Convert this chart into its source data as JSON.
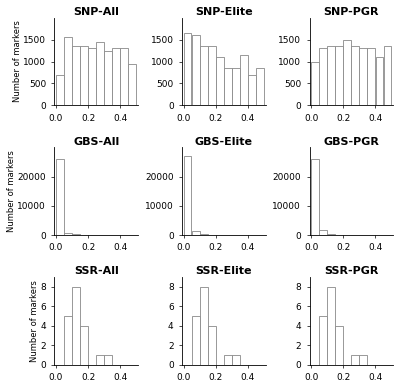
{
  "titles": [
    [
      "SNP-All",
      "SNP-Elite",
      "SNP-PGR"
    ],
    [
      "GBS-All",
      "GBS-Elite",
      "GBS-PGR"
    ],
    [
      "SSR-All",
      "SSR-Elite",
      "SSR-PGR"
    ]
  ],
  "ylabel": "Number of markers",
  "bin_edges": [
    0.0,
    0.05,
    0.1,
    0.15,
    0.2,
    0.25,
    0.3,
    0.35,
    0.4,
    0.45,
    0.5
  ],
  "snp_data": [
    [
      700,
      1550,
      1350,
      1350,
      1300,
      1450,
      1250,
      1300,
      1300,
      950
    ],
    [
      1650,
      1600,
      1350,
      1350,
      1100,
      850,
      850,
      1150,
      700,
      850
    ],
    [
      1000,
      1300,
      1350,
      1350,
      1500,
      1350,
      1300,
      1300,
      1100,
      1350
    ]
  ],
  "gbs_data": [
    [
      26000,
      800,
      300,
      150,
      100,
      80,
      60,
      50,
      40,
      40
    ],
    [
      27000,
      1500,
      300,
      150,
      100,
      80,
      60,
      50,
      40,
      40
    ],
    [
      26000,
      1800,
      300,
      150,
      100,
      80,
      60,
      50,
      40,
      40
    ]
  ],
  "ssr_data": [
    [
      0,
      5,
      8,
      4,
      0,
      1,
      1,
      0,
      0,
      0
    ],
    [
      0,
      5,
      8,
      4,
      0,
      1,
      1,
      0,
      0,
      0
    ],
    [
      0,
      5,
      8,
      4,
      0,
      1,
      1,
      0,
      0,
      0
    ]
  ],
  "snp_ylim": [
    0,
    2000
  ],
  "gbs_ylim": [
    0,
    30000
  ],
  "ssr_ylim": [
    0,
    9
  ],
  "snp_yticks": [
    0,
    500,
    1000,
    1500
  ],
  "gbs_yticks": [
    0,
    10000,
    20000
  ],
  "ssr_yticks": [
    0,
    2,
    4,
    6,
    8
  ],
  "xticks": [
    0.0,
    0.2,
    0.4
  ],
  "xlim": [
    -0.01,
    0.51
  ],
  "bar_color": "white",
  "bar_edgecolor": "#888888",
  "title_fontsize": 8,
  "label_fontsize": 6,
  "tick_fontsize": 6.5,
  "background_color": "white"
}
